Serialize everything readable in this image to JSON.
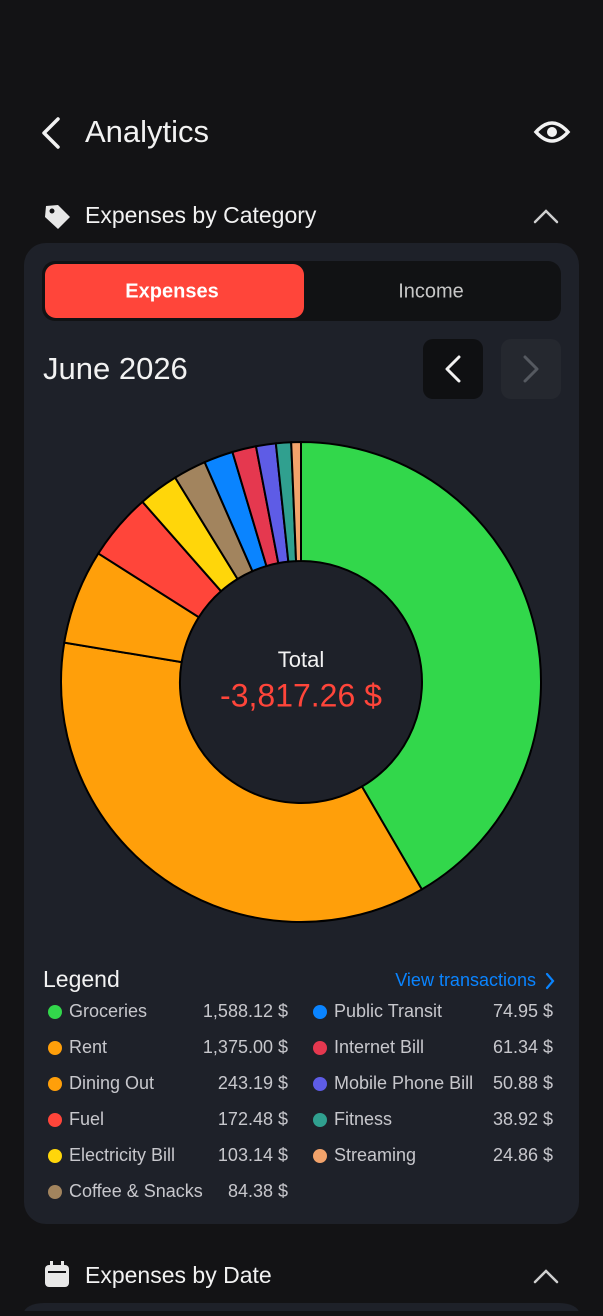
{
  "header": {
    "title": "Analytics"
  },
  "category_section": {
    "title": "Expenses by Category"
  },
  "tabs": [
    "Expenses",
    "Income"
  ],
  "period": "June 2026",
  "chart_data": {
    "type": "pie",
    "center_label": "Total",
    "center_value": "-3,817.26 $",
    "categories": [
      "Groceries",
      "Rent",
      "Dining Out",
      "Fuel",
      "Electricity Bill",
      "Coffee & Snacks",
      "Public Transit",
      "Internet Bill",
      "Mobile Phone Bill",
      "Fitness",
      "Streaming"
    ],
    "values": [
      1588.12,
      1375.0,
      243.19,
      172.48,
      103.14,
      84.38,
      74.95,
      61.34,
      50.88,
      38.92,
      24.86
    ],
    "value_labels": [
      "1,588.12 $",
      "1,375.00 $",
      "243.19 $",
      "172.48 $",
      "103.14 $",
      "84.38 $",
      "74.95 $",
      "61.34 $",
      "50.88 $",
      "38.92 $",
      "24.86 $"
    ],
    "colors": [
      "#32d74b",
      "#ff9f0a",
      "#ff9f0a",
      "#ff453a",
      "#ffd60a",
      "#a2845e",
      "#0a84ff",
      "#e5384f",
      "#5e5ce6",
      "#30a08f",
      "#f2a36b"
    ],
    "legend_title": "Legend",
    "legend_link": "View transactions"
  },
  "date_section": {
    "title": "Expenses by Date"
  }
}
